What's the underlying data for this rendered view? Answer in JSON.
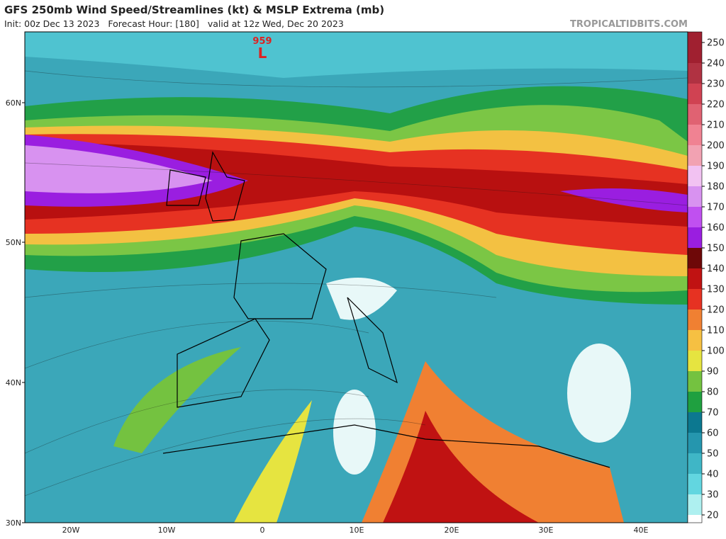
{
  "header": {
    "title": "GFS 250mb Wind Speed/Streamlines (kt) & MSLP Extrema (mb)",
    "subtitle": "Init: 00z Dec 13 2023   Forecast Hour: [180]   valid at 12z Wed, Dec 20 2023",
    "brand": "TROPICALTIDBITS.COM"
  },
  "map": {
    "lat_labels": [
      "60N",
      "50N",
      "40N",
      "30N"
    ],
    "lon_labels": [
      "20W",
      "10W",
      "0",
      "10E",
      "20E",
      "30E",
      "40E"
    ],
    "extrema": [
      {
        "value": "959",
        "symbol": "L"
      }
    ]
  },
  "colorbar": {
    "ticks": [
      20,
      30,
      40,
      50,
      60,
      70,
      80,
      90,
      100,
      110,
      120,
      130,
      140,
      150,
      160,
      170,
      180,
      190,
      200,
      210,
      220,
      230,
      240,
      250
    ],
    "colors": [
      "#aef0f0",
      "#62d6e0",
      "#3fb6c6",
      "#2596ae",
      "#0c7890",
      "#1fa040",
      "#74c240",
      "#e6e440",
      "#f6c042",
      "#f08032",
      "#e63222",
      "#c01212",
      "#6e0808",
      "#9a1ee0",
      "#c050f0",
      "#d892f0",
      "#f2c2f2",
      "#f2a2b2",
      "#f08292",
      "#e06272",
      "#d04252",
      "#b03242",
      "#a02030"
    ]
  }
}
